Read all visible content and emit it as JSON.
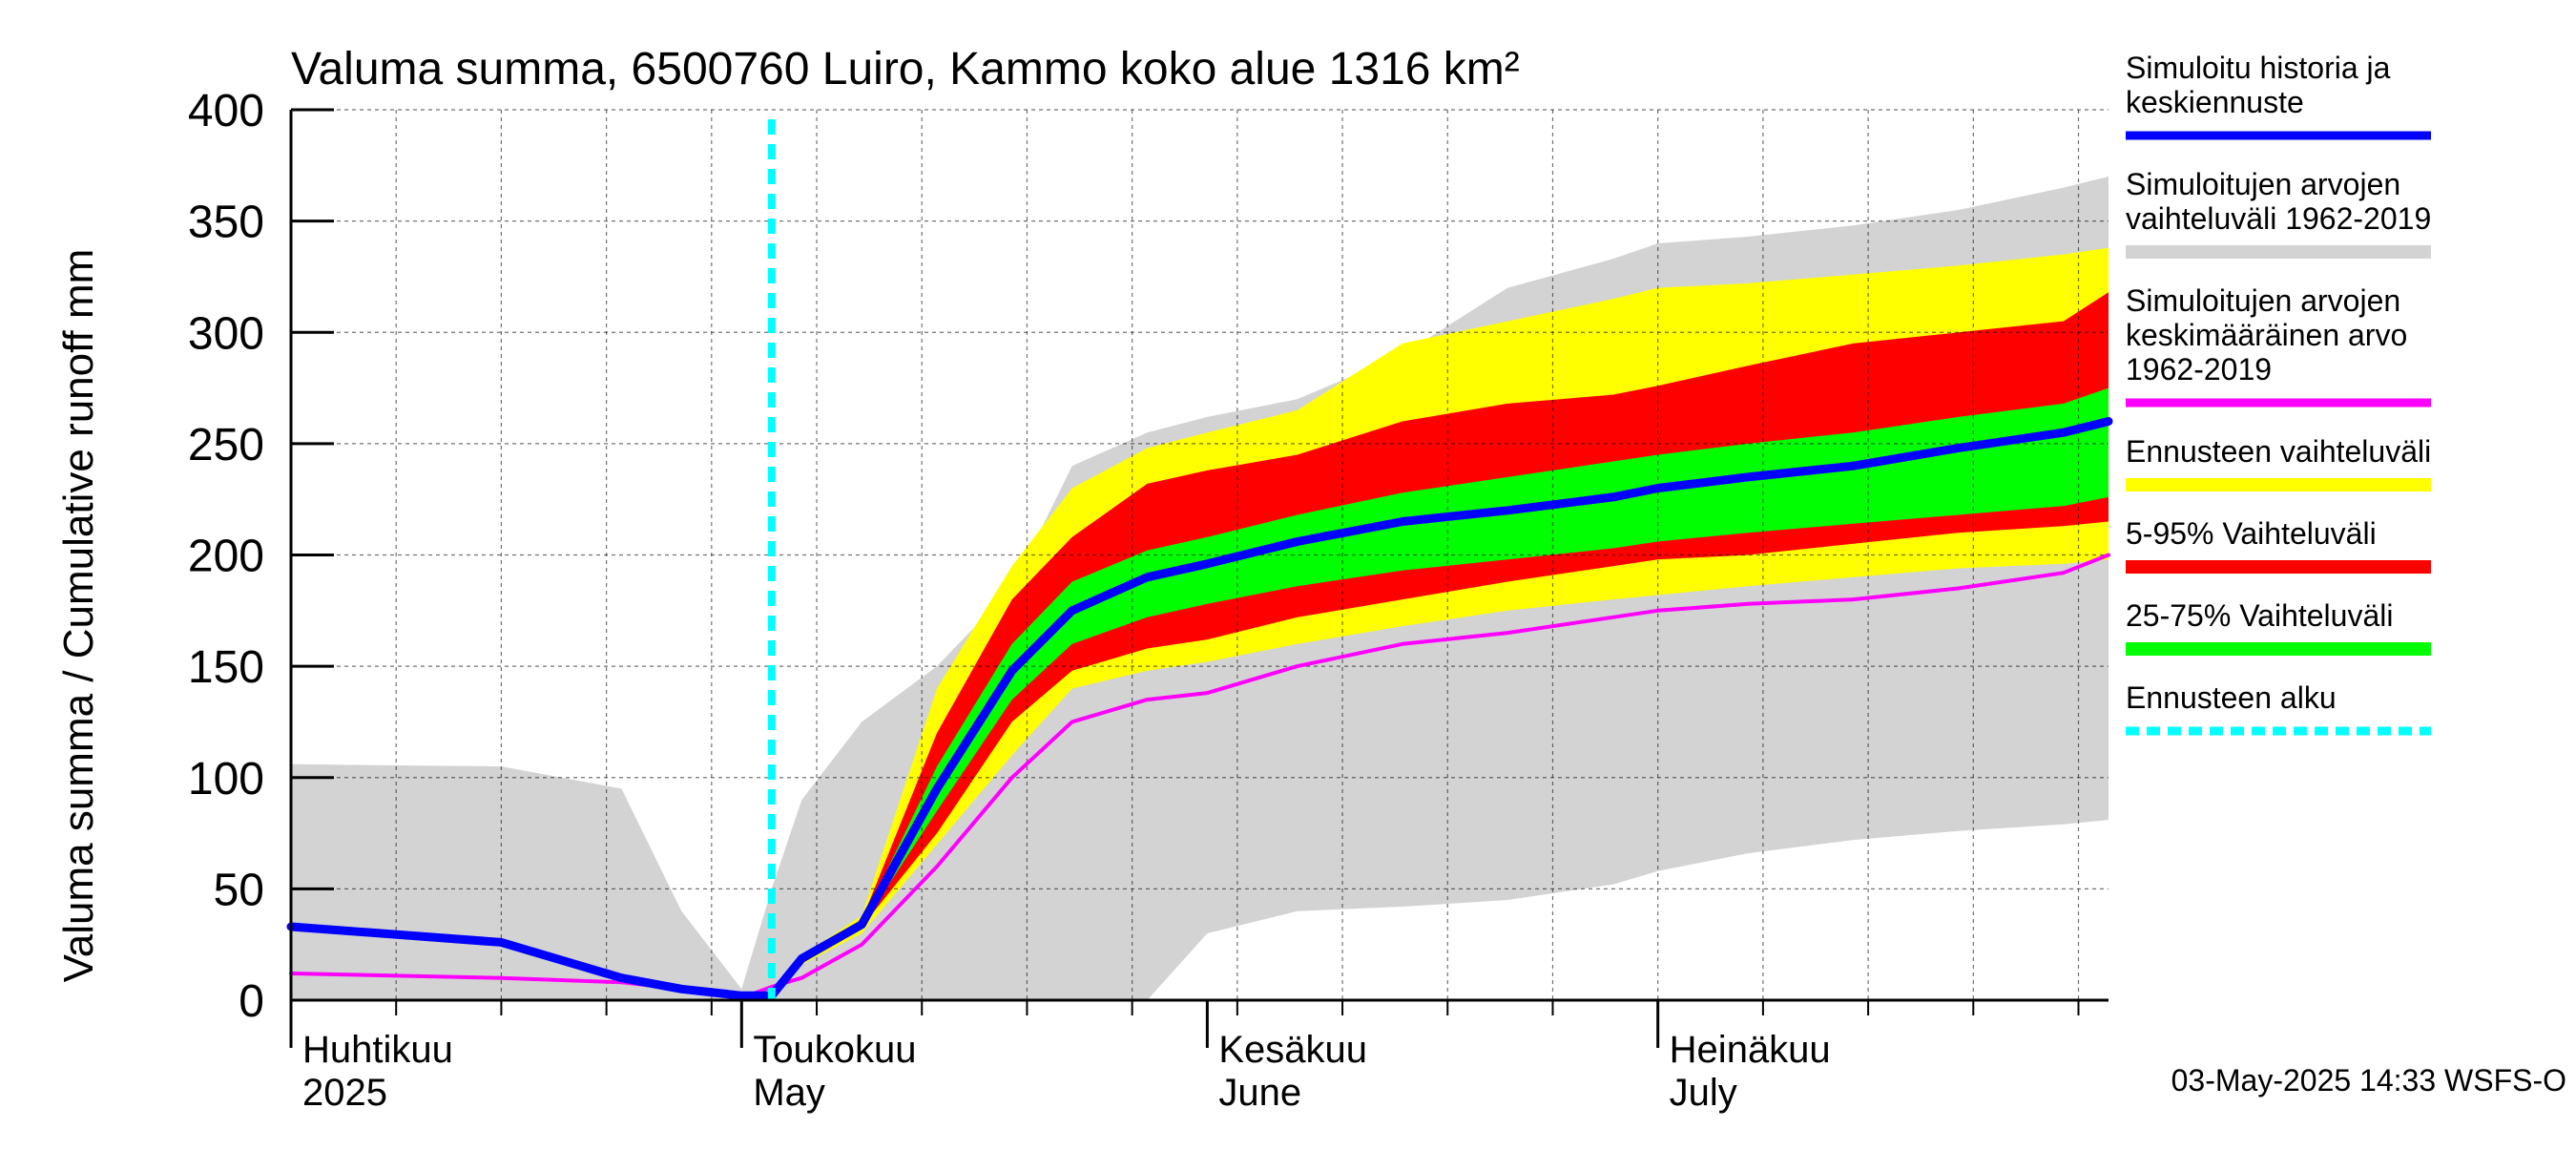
{
  "chart_data": {
    "type": "area",
    "title": "Valuma summa, 6500760 Luiro, Kammo koko alue 1316 km²",
    "ylabel": "Valuma summa / Cumulative runoff    mm",
    "ylim": [
      0,
      400
    ],
    "yticks": [
      0,
      50,
      100,
      150,
      200,
      250,
      300,
      350,
      400
    ],
    "xlim": [
      "2025-04-01",
      "2025-07-31"
    ],
    "month_labels": [
      {
        "fi": "Huhtikuu",
        "en": "2025",
        "start": "2025-04-01"
      },
      {
        "fi": "Toukokuu",
        "en": "May",
        "start": "2025-05-01"
      },
      {
        "fi": "Kesäkuu",
        "en": "June",
        "start": "2025-06-01"
      },
      {
        "fi": "Heinäkuu",
        "en": "July",
        "start": "2025-07-01"
      }
    ],
    "grid": true,
    "legend_position": "right",
    "footer": "03-May-2025 14:33 WSFS-O",
    "forecast_start": "2025-05-03",
    "legend": [
      {
        "label": "Simuloitu historia ja keskiennuste",
        "color": "#0000ff",
        "style": "line"
      },
      {
        "label": "Simuloitujen arvojen vaihteluväli 1962-2019",
        "color": "#d3d3d3",
        "style": "band"
      },
      {
        "label": "Simuloitujen arvojen keskimääräinen arvo 1962-2019",
        "color": "#ff00ff",
        "style": "line"
      },
      {
        "label": "Ennusteen vaihteluväli",
        "color": "#ffff00",
        "style": "band"
      },
      {
        "label": "5-95% Vaihteluväli",
        "color": "#ff0000",
        "style": "band"
      },
      {
        "label": "25-75% Vaihteluväli",
        "color": "#00ff00",
        "style": "band"
      },
      {
        "label": "Ennusteen alku",
        "color": "#00ffff",
        "style": "dashed"
      }
    ],
    "x": [
      "2025-04-01",
      "2025-04-15",
      "2025-04-23",
      "2025-04-27",
      "2025-05-01",
      "2025-05-03",
      "2025-05-05",
      "2025-05-09",
      "2025-05-14",
      "2025-05-19",
      "2025-05-23",
      "2025-05-28",
      "2025-06-01",
      "2025-06-07",
      "2025-06-14",
      "2025-06-21",
      "2025-06-28",
      "2025-07-01",
      "2025-07-07",
      "2025-07-14",
      "2025-07-21",
      "2025-07-28",
      "2025-07-31"
    ],
    "series": [
      {
        "name": "Simuloitujen arvojen vaihteluväli 1962-2019",
        "kind": "band",
        "lower": [
          0,
          0,
          0,
          0,
          0,
          0,
          0,
          0,
          0,
          0,
          0,
          0,
          30,
          40,
          42,
          45,
          52,
          58,
          66,
          72,
          76,
          79,
          81
        ],
        "upper": [
          106,
          105,
          95,
          40,
          5,
          50,
          90,
          125,
          150,
          185,
          240,
          255,
          262,
          270,
          290,
          320,
          333,
          340,
          343,
          348,
          355,
          365,
          370
        ]
      },
      {
        "name": "Ennusteen vaihteluväli",
        "kind": "band",
        "lower": [
          null,
          null,
          null,
          null,
          null,
          2,
          16,
          30,
          70,
          110,
          140,
          148,
          152,
          160,
          168,
          175,
          180,
          182,
          186,
          190,
          194,
          196,
          198
        ],
        "upper": [
          null,
          null,
          null,
          null,
          null,
          2,
          20,
          38,
          140,
          195,
          230,
          248,
          255,
          265,
          295,
          305,
          315,
          320,
          322,
          326,
          330,
          335,
          338
        ]
      },
      {
        "name": "5-95% Vaihteluväli",
        "kind": "band",
        "lower": [
          null,
          null,
          null,
          null,
          null,
          2,
          18,
          33,
          75,
          125,
          148,
          158,
          162,
          172,
          180,
          188,
          195,
          198,
          200,
          205,
          210,
          213,
          215
        ],
        "upper": [
          null,
          null,
          null,
          null,
          null,
          2,
          19,
          36,
          120,
          180,
          208,
          232,
          238,
          245,
          260,
          268,
          272,
          276,
          285,
          295,
          300,
          305,
          318
        ]
      },
      {
        "name": "25-75% Vaihteluväli",
        "kind": "band",
        "lower": [
          null,
          null,
          null,
          null,
          null,
          2,
          18.5,
          33.5,
          85,
          135,
          160,
          172,
          178,
          186,
          193,
          198,
          203,
          206,
          210,
          214,
          218,
          222,
          226
        ],
        "upper": [
          null,
          null,
          null,
          null,
          null,
          2,
          18.8,
          35,
          105,
          160,
          188,
          202,
          208,
          218,
          228,
          235,
          242,
          245,
          250,
          255,
          262,
          268,
          275
        ]
      },
      {
        "name": "Simuloitujen arvojen keskimääräinen arvo 1962-2019",
        "kind": "line",
        "values": [
          12,
          10,
          8,
          5,
          1,
          6,
          10,
          25,
          60,
          100,
          125,
          135,
          138,
          150,
          160,
          165,
          172,
          175,
          178,
          180,
          185,
          192,
          200
        ]
      },
      {
        "name": "Simuloitu historia ja keskiennuste",
        "kind": "line",
        "values": [
          33,
          26,
          10,
          5,
          2,
          2,
          18.7,
          34,
          95,
          148,
          175,
          190,
          196,
          206,
          215,
          220,
          226,
          230,
          235,
          240,
          248,
          255,
          260
        ]
      }
    ]
  }
}
